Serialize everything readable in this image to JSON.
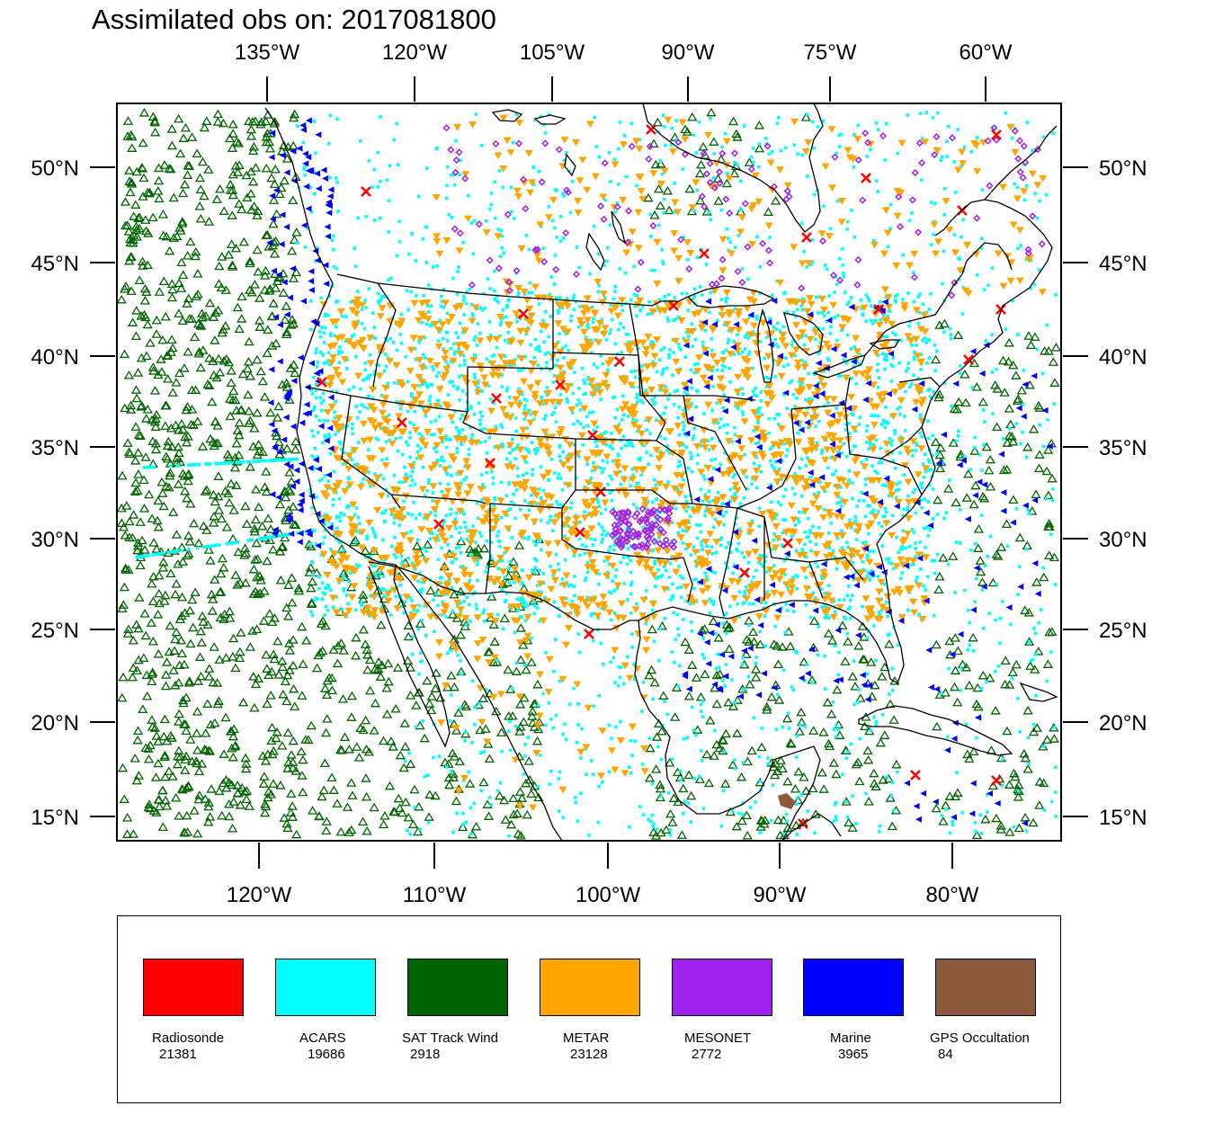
{
  "title": "Assimilated obs on: 2017081800",
  "top_lon_labels": [
    "135°W",
    "120°W",
    "105°W",
    "90°W",
    "75°W",
    "60°W"
  ],
  "bottom_lon_labels": [
    "120°W",
    "110°W",
    "100°W",
    "90°W",
    "80°W"
  ],
  "lat_labels": [
    "50°N",
    "45°N",
    "40°N",
    "35°N",
    "30°N",
    "25°N",
    "20°N",
    "15°N"
  ],
  "legend": [
    {
      "name": "Radiosonde",
      "count": "21381",
      "color": "#ff0000"
    },
    {
      "name": "ACARS",
      "count": "19686",
      "color": "#00ffff"
    },
    {
      "name": "SAT Track Wind",
      "count": "2918",
      "color": "#006400"
    },
    {
      "name": "METAR",
      "count": "23128",
      "color": "#ffa500"
    },
    {
      "name": "MESONET",
      "count": "2772",
      "color": "#a020f0"
    },
    {
      "name": "Marine",
      "count": "3965",
      "color": "#0000ff"
    },
    {
      "name": "GPS Occultation",
      "count": "84",
      "color": "#8b5a3c"
    }
  ]
}
